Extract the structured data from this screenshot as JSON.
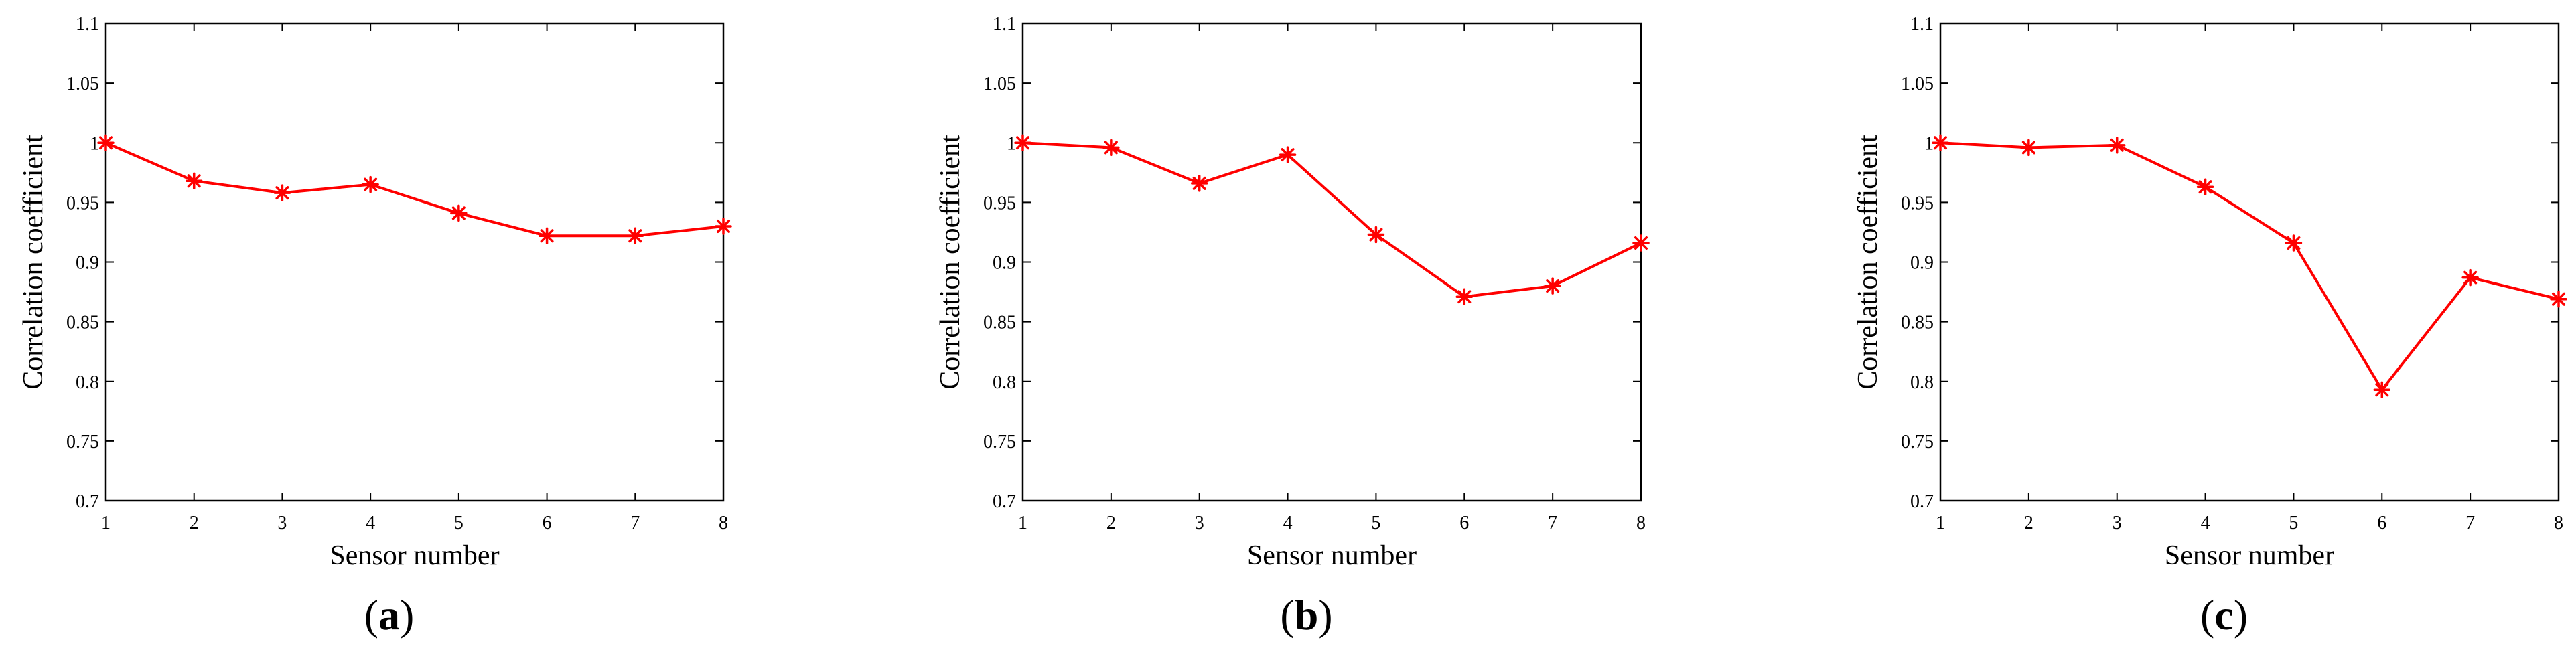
{
  "chart_data": [
    {
      "type": "line",
      "panel_label": "a",
      "xlabel": "Sensor number",
      "ylabel": "Correlation coefficient",
      "xlim": [
        1,
        8
      ],
      "ylim": [
        0.7,
        1.1
      ],
      "x_ticks": [
        "1",
        "2",
        "3",
        "4",
        "5",
        "6",
        "7",
        "8"
      ],
      "y_ticks": [
        "0.7",
        "0.75",
        "0.8",
        "0.85",
        "0.9",
        "0.95",
        "1",
        "1.05",
        "1.1"
      ],
      "grid": false,
      "line_color": "#ff0000",
      "marker": "asterisk",
      "x": [
        1,
        2,
        3,
        4,
        5,
        6,
        7,
        8
      ],
      "y": [
        1.0,
        0.968,
        0.958,
        0.965,
        0.941,
        0.922,
        0.922,
        0.93
      ]
    },
    {
      "type": "line",
      "panel_label": "b",
      "xlabel": "Sensor number",
      "ylabel": "Correlation coefficient",
      "xlim": [
        1,
        8
      ],
      "ylim": [
        0.7,
        1.1
      ],
      "x_ticks": [
        "1",
        "2",
        "3",
        "4",
        "5",
        "6",
        "7",
        "8"
      ],
      "y_ticks": [
        "0.7",
        "0.75",
        "0.8",
        "0.85",
        "0.9",
        "0.95",
        "1",
        "1.05",
        "1.1"
      ],
      "grid": false,
      "line_color": "#ff0000",
      "marker": "asterisk",
      "x": [
        1,
        2,
        3,
        4,
        5,
        6,
        7,
        8
      ],
      "y": [
        1.0,
        0.996,
        0.966,
        0.99,
        0.923,
        0.871,
        0.88,
        0.916
      ]
    },
    {
      "type": "line",
      "panel_label": "c",
      "xlabel": "Sensor number",
      "ylabel": "Correlation coefficient",
      "xlim": [
        1,
        8
      ],
      "ylim": [
        0.7,
        1.1
      ],
      "x_ticks": [
        "1",
        "2",
        "3",
        "4",
        "5",
        "6",
        "7",
        "8"
      ],
      "y_ticks": [
        "0.7",
        "0.75",
        "0.8",
        "0.85",
        "0.9",
        "0.95",
        "1",
        "1.05",
        "1.1"
      ],
      "grid": false,
      "line_color": "#ff0000",
      "marker": "asterisk",
      "x": [
        1,
        2,
        3,
        4,
        5,
        6,
        7,
        8
      ],
      "y": [
        1.0,
        0.996,
        0.998,
        0.963,
        0.916,
        0.793,
        0.887,
        0.869
      ]
    }
  ]
}
